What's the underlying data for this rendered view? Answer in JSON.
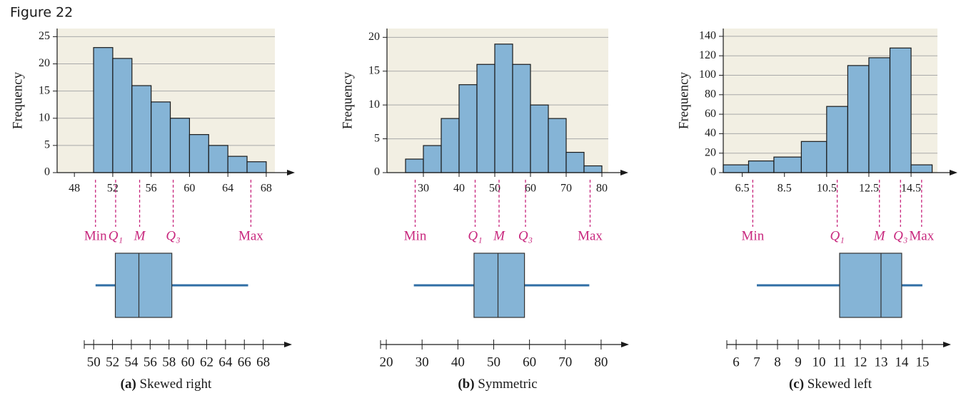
{
  "figure_label": "Figure 22",
  "chart_data": [
    {
      "type": "histogram",
      "ylabel": "Frequency",
      "color": "#85b4d6",
      "grid": true,
      "bins": [
        50,
        52,
        54,
        56,
        58,
        60,
        62,
        64,
        66,
        68
      ],
      "counts": [
        23,
        21,
        16,
        13,
        10,
        7,
        5,
        3,
        2
      ],
      "xlim": [
        46.2,
        68.9
      ],
      "xticks": [
        48,
        52,
        56,
        60,
        64,
        68
      ],
      "ylim": [
        0,
        26.5
      ],
      "yticks": [
        0,
        5,
        10,
        15,
        20,
        25
      ],
      "marker_labels": [
        "Min",
        "Q₁",
        "M",
        "Q₃",
        "Max"
      ],
      "boxplot": {
        "type": "boxplot",
        "values": [
          50.2,
          52.3,
          54.8,
          58.3,
          66.4
        ],
        "xlim": [
          49,
          70
        ],
        "xticks": [
          50,
          52,
          54,
          56,
          58,
          60,
          62,
          64,
          66,
          68
        ]
      },
      "caption_label": "(a)",
      "caption": "Skewed right"
    },
    {
      "type": "histogram",
      "ylabel": "Frequency",
      "color": "#85b4d6",
      "grid": true,
      "bins": [
        25,
        30,
        35,
        40,
        45,
        50,
        55,
        60,
        65,
        70,
        75,
        80
      ],
      "counts": [
        2,
        4,
        8,
        13,
        16,
        19,
        16,
        10,
        8,
        3,
        1
      ],
      "xlim": [
        19.8,
        81.8
      ],
      "xticks": [
        30,
        40,
        50,
        60,
        70,
        80
      ],
      "ylim": [
        0,
        21.3
      ],
      "yticks": [
        0,
        5,
        10,
        15,
        20
      ],
      "marker_labels": [
        "Min",
        "Q₁",
        "M",
        "Q₃",
        "Max"
      ],
      "boxplot": {
        "type": "boxplot",
        "values": [
          27.7,
          44.5,
          51.2,
          58.6,
          76.7
        ],
        "xlim": [
          18.4,
          85
        ],
        "xticks": [
          20,
          30,
          40,
          50,
          60,
          70,
          80
        ]
      },
      "caption_label": "(b)",
      "caption": "Symmetric"
    },
    {
      "type": "histogram",
      "ylabel": "Frequency",
      "color": "#85b4d6",
      "grid": true,
      "bins": [
        5.6,
        6.8,
        8.0,
        9.3,
        10.5,
        11.5,
        12.5,
        13.5,
        14.5,
        15.5
      ],
      "counts": [
        8,
        12,
        16,
        32,
        68,
        110,
        118,
        128,
        8
      ],
      "xlim": [
        5.6,
        15.75
      ],
      "xticks": [
        6.5,
        8.5,
        10.5,
        12.5,
        14.5
      ],
      "ylim": [
        0,
        148
      ],
      "yticks": [
        0,
        20,
        40,
        60,
        80,
        100,
        120,
        140
      ],
      "marker_labels": [
        "Min",
        "Q₁",
        "M",
        "Q₃",
        "Max"
      ],
      "boxplot": {
        "type": "boxplot",
        "values": [
          7,
          11,
          13,
          14,
          15
        ],
        "xlim": [
          5.55,
          15.9
        ],
        "xticks": [
          6,
          7,
          8,
          9,
          10,
          11,
          12,
          13,
          14,
          15
        ]
      },
      "caption_label": "(c)",
      "caption": "Skewed left"
    }
  ]
}
